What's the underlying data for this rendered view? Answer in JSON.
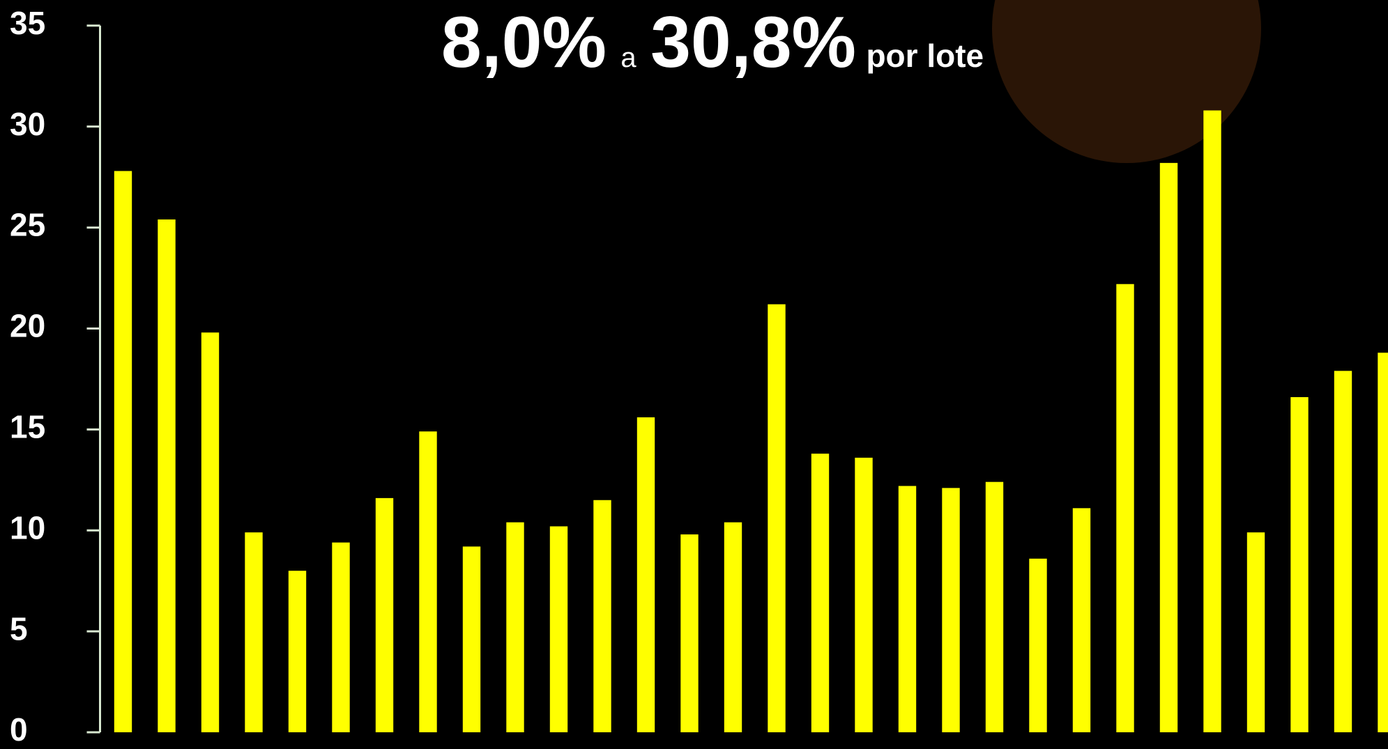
{
  "chart_data": {
    "type": "bar",
    "title_parts": [
      "8,0%",
      "a",
      "30,8%",
      "por lote"
    ],
    "categories": [
      null,
      null,
      null,
      null,
      null,
      null,
      null,
      null,
      null,
      null,
      null,
      null,
      null,
      null,
      null,
      null,
      null,
      null,
      null,
      null,
      null,
      null,
      null,
      null,
      null,
      null,
      null,
      null,
      null,
      null
    ],
    "values": [
      27.8,
      25.4,
      19.8,
      9.9,
      8.0,
      9.4,
      11.6,
      14.9,
      9.2,
      10.4,
      10.2,
      11.5,
      15.6,
      9.8,
      10.4,
      21.2,
      13.8,
      13.6,
      12.2,
      12.1,
      12.4,
      8.6,
      11.1,
      22.2,
      28.2,
      30.8,
      9.9,
      16.6,
      17.9,
      18.8
    ],
    "color": "#ffff00",
    "ylim": [
      0,
      35
    ],
    "yticks": [
      0,
      5,
      10,
      15,
      20,
      25,
      30,
      35
    ],
    "grid": false
  }
}
